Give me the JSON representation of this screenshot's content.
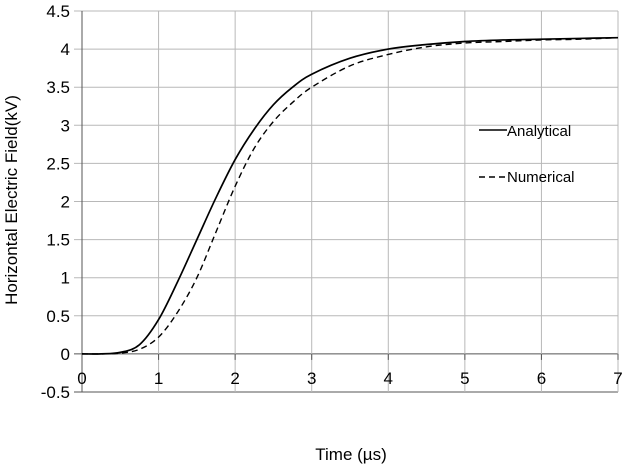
{
  "chart_data": {
    "type": "line",
    "title": "",
    "xlabel": "Time (µs)",
    "ylabel": "Horizontal Electric Field(kV)",
    "xlim": [
      0,
      7
    ],
    "ylim": [
      -0.5,
      4.5
    ],
    "xticks": [
      "0",
      "1",
      "2",
      "3",
      "4",
      "5",
      "6",
      "7"
    ],
    "yticks": [
      "-0.5",
      "0",
      "0.5",
      "1",
      "1.5",
      "2",
      "2.5",
      "3",
      "3.5",
      "4",
      "4.5"
    ],
    "grid": true,
    "legend_position": "right-middle",
    "series": [
      {
        "name": "Analytical",
        "style": "solid",
        "x": [
          0,
          0.25,
          0.5,
          0.75,
          1,
          1.25,
          1.5,
          1.75,
          2,
          2.25,
          2.5,
          2.75,
          3,
          3.5,
          4,
          4.5,
          5,
          5.5,
          6,
          6.5,
          7
        ],
        "y": [
          0,
          0,
          0.02,
          0.12,
          0.45,
          0.95,
          1.5,
          2.05,
          2.55,
          2.95,
          3.27,
          3.5,
          3.67,
          3.88,
          4.0,
          4.06,
          4.1,
          4.12,
          4.13,
          4.14,
          4.15
        ]
      },
      {
        "name": "Numerical",
        "style": "dashed",
        "x": [
          0,
          0.25,
          0.5,
          0.75,
          1,
          1.25,
          1.5,
          1.75,
          2,
          2.25,
          2.5,
          2.75,
          3,
          3.5,
          4,
          4.5,
          5,
          5.5,
          6,
          6.5,
          7
        ],
        "y": [
          0,
          0,
          0.01,
          0.06,
          0.22,
          0.55,
          1.0,
          1.6,
          2.2,
          2.7,
          3.05,
          3.3,
          3.5,
          3.78,
          3.93,
          4.03,
          4.08,
          4.1,
          4.12,
          4.13,
          4.15
        ]
      }
    ]
  }
}
